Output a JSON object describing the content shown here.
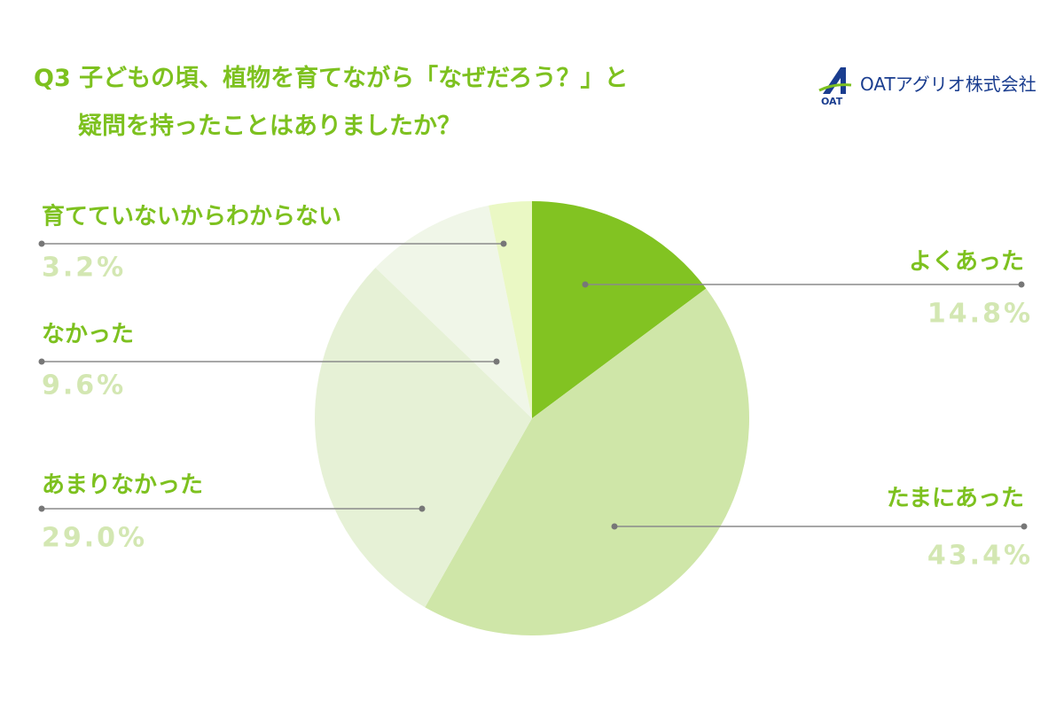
{
  "chart_data": {
    "type": "pie",
    "title": "Q3 子どもの頃、植物を育てながら「なぜだろう？」と\n疑問を持ったことはありましたか？",
    "logo": "OATアグリオ株式会社",
    "logo_mark": "OAT",
    "categories": [
      "よくあった",
      "たまにあった",
      "あまりなかった",
      "なかった",
      "育てていないからわからない"
    ],
    "values": [
      14.8,
      43.4,
      29.0,
      9.6,
      3.2
    ],
    "value_labels": [
      "14.8%",
      "43.4%",
      "29.0%",
      "9.6%",
      "3.2%"
    ],
    "colors": [
      "#82c322",
      "#cfe6a8",
      "#e6f1d6",
      "#f0f6e8",
      "#eaf8c4"
    ]
  }
}
